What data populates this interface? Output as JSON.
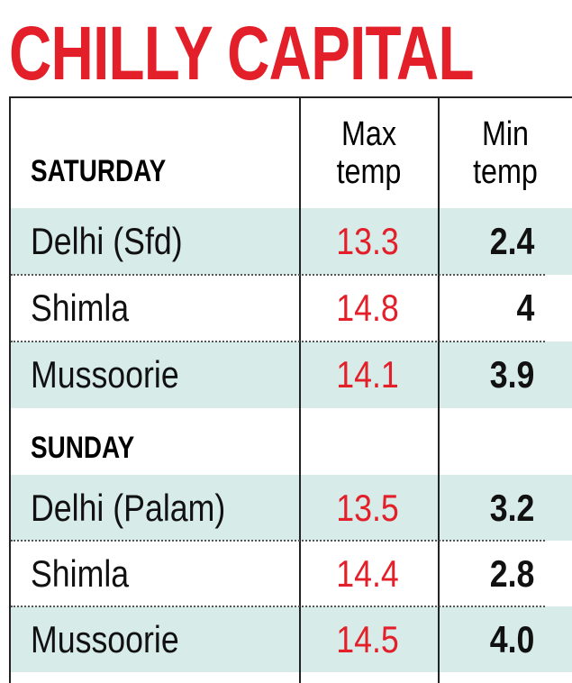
{
  "title": "CHILLY CAPITAL",
  "table": {
    "headers": [
      "Max temp",
      "Min temp"
    ],
    "sections": [
      {
        "label": "SATURDAY",
        "rows": [
          [
            "Delhi (Sfd)",
            "13.3",
            "2.4"
          ],
          [
            "Shimla",
            "14.8",
            "4"
          ],
          [
            "Mussoorie",
            "14.1",
            "3.9"
          ]
        ]
      },
      {
        "label": "SUNDAY",
        "rows": [
          [
            "Delhi (Palam)",
            "13.5",
            "3.2"
          ],
          [
            "Shimla",
            "14.4",
            "2.8"
          ],
          [
            "Mussoorie",
            "14.5",
            "4.0"
          ]
        ]
      }
    ]
  }
}
